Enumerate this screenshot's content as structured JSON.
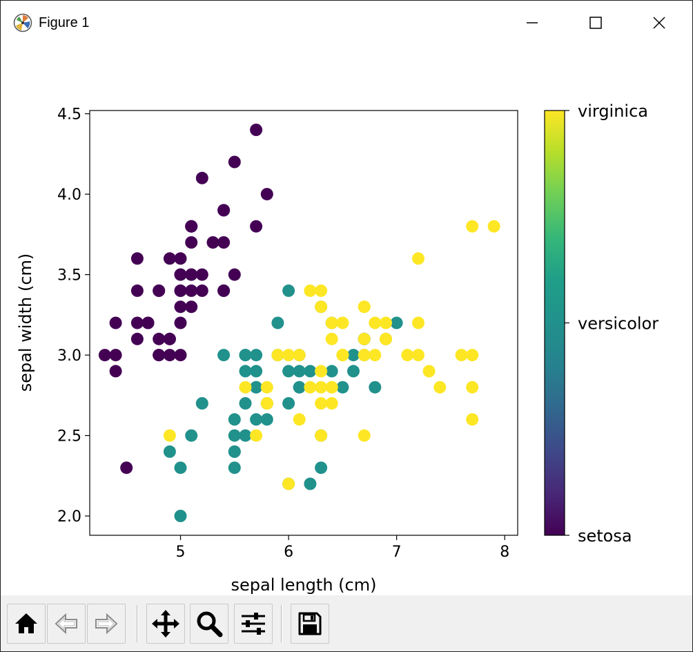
{
  "window": {
    "title": "Figure 1",
    "controls": {
      "minimize": "minimize",
      "maximize": "maximize",
      "close": "close"
    }
  },
  "toolbar": {
    "buttons": [
      {
        "name": "home",
        "icon": "home-icon"
      },
      {
        "name": "back",
        "icon": "arrow-left-icon"
      },
      {
        "name": "forward",
        "icon": "arrow-right-icon"
      },
      {
        "name": "pan",
        "icon": "move-icon"
      },
      {
        "name": "zoom",
        "icon": "magnifier-icon"
      },
      {
        "name": "configure-subplots",
        "icon": "sliders-icon"
      },
      {
        "name": "save",
        "icon": "floppy-disk-icon"
      }
    ]
  },
  "chart_data": {
    "type": "scatter",
    "title": "",
    "xlabel": "sepal length (cm)",
    "ylabel": "sepal width (cm)",
    "xlim": [
      4.16,
      8.12
    ],
    "ylim": [
      1.88,
      4.52
    ],
    "xticks": [
      5,
      6,
      7,
      8
    ],
    "yticks": [
      2.0,
      2.5,
      3.0,
      3.5,
      4.0,
      4.5
    ],
    "xticklabels": [
      "5",
      "6",
      "7",
      "8"
    ],
    "yticklabels": [
      "2.0",
      "2.5",
      "3.0",
      "3.5",
      "4.0",
      "4.5"
    ],
    "grid": false,
    "colormap": "viridis",
    "colorbar": {
      "ticklabels": [
        "setosa",
        "versicolor",
        "virginica"
      ],
      "range": [
        0,
        2
      ]
    },
    "colors": {
      "setosa": "#440154",
      "versicolor": "#21918c",
      "virginica": "#fde725"
    },
    "series": [
      {
        "name": "setosa",
        "class": 0,
        "x": [
          5.1,
          4.9,
          4.7,
          4.6,
          5.0,
          5.4,
          4.6,
          5.0,
          4.4,
          4.9,
          5.4,
          4.8,
          4.8,
          4.3,
          5.8,
          5.7,
          5.4,
          5.1,
          5.7,
          5.1,
          5.4,
          5.1,
          4.6,
          5.1,
          4.8,
          5.0,
          5.0,
          5.2,
          5.2,
          4.7,
          4.8,
          5.4,
          5.2,
          5.5,
          4.9,
          5.0,
          5.5,
          4.9,
          4.4,
          5.1,
          5.0,
          4.5,
          4.4,
          5.0,
          5.1,
          4.8,
          5.1,
          4.6,
          5.3,
          5.0
        ],
        "y": [
          3.5,
          3.0,
          3.2,
          3.1,
          3.6,
          3.9,
          3.4,
          3.4,
          2.9,
          3.1,
          3.7,
          3.4,
          3.0,
          3.0,
          4.0,
          4.4,
          3.9,
          3.5,
          3.8,
          3.8,
          3.4,
          3.7,
          3.6,
          3.3,
          3.4,
          3.0,
          3.4,
          3.5,
          3.4,
          3.2,
          3.1,
          3.4,
          4.1,
          4.2,
          3.1,
          3.2,
          3.5,
          3.6,
          3.0,
          3.4,
          3.5,
          2.3,
          3.2,
          3.5,
          3.8,
          3.0,
          3.8,
          3.2,
          3.7,
          3.3
        ]
      },
      {
        "name": "versicolor",
        "class": 1,
        "x": [
          7.0,
          6.4,
          6.9,
          5.5,
          6.5,
          5.7,
          6.3,
          4.9,
          6.6,
          5.2,
          5.0,
          5.9,
          6.0,
          6.1,
          5.6,
          6.7,
          5.6,
          5.8,
          6.2,
          5.6,
          5.9,
          6.1,
          6.3,
          6.1,
          6.4,
          6.6,
          6.8,
          6.7,
          6.0,
          5.7,
          5.5,
          5.5,
          5.8,
          6.0,
          5.4,
          6.0,
          6.7,
          6.3,
          5.6,
          5.5,
          5.5,
          6.1,
          5.8,
          5.0,
          5.6,
          5.7,
          5.7,
          6.2,
          5.1,
          5.7
        ],
        "y": [
          3.2,
          3.2,
          3.1,
          2.3,
          2.8,
          2.8,
          3.3,
          2.4,
          2.9,
          2.7,
          2.0,
          3.0,
          2.2,
          2.9,
          2.9,
          3.1,
          3.0,
          2.7,
          2.2,
          2.5,
          3.2,
          2.8,
          2.5,
          2.8,
          2.9,
          3.0,
          2.8,
          3.0,
          2.9,
          2.6,
          2.4,
          2.4,
          2.7,
          2.7,
          3.0,
          3.4,
          3.1,
          2.3,
          3.0,
          2.5,
          2.6,
          3.0,
          2.6,
          2.3,
          2.7,
          3.0,
          2.9,
          2.9,
          2.5,
          2.8
        ]
      },
      {
        "name": "virginica",
        "class": 2,
        "x": [
          6.3,
          5.8,
          7.1,
          6.3,
          6.5,
          7.6,
          4.9,
          7.3,
          6.7,
          7.2,
          6.5,
          6.4,
          6.8,
          5.7,
          5.8,
          6.4,
          6.5,
          7.7,
          7.7,
          6.0,
          6.9,
          5.6,
          7.7,
          6.3,
          6.7,
          7.2,
          6.2,
          6.1,
          6.4,
          7.2,
          7.4,
          7.9,
          6.4,
          6.3,
          6.1,
          7.7,
          6.3,
          6.4,
          6.0,
          6.9,
          6.7,
          6.9,
          5.8,
          6.8,
          6.7,
          6.7,
          6.3,
          6.5,
          6.2,
          5.9
        ],
        "y": [
          3.3,
          2.7,
          3.0,
          2.9,
          3.0,
          3.0,
          2.5,
          2.9,
          2.5,
          3.6,
          3.2,
          2.7,
          3.0,
          2.5,
          2.8,
          3.2,
          3.0,
          3.8,
          2.6,
          2.2,
          3.2,
          2.8,
          2.8,
          2.7,
          3.3,
          3.2,
          2.8,
          3.0,
          2.8,
          3.0,
          2.8,
          3.8,
          2.8,
          2.8,
          2.6,
          3.0,
          3.4,
          3.1,
          3.0,
          3.1,
          3.1,
          3.1,
          2.7,
          3.2,
          3.3,
          3.0,
          2.5,
          3.0,
          3.4,
          3.0
        ]
      }
    ]
  }
}
